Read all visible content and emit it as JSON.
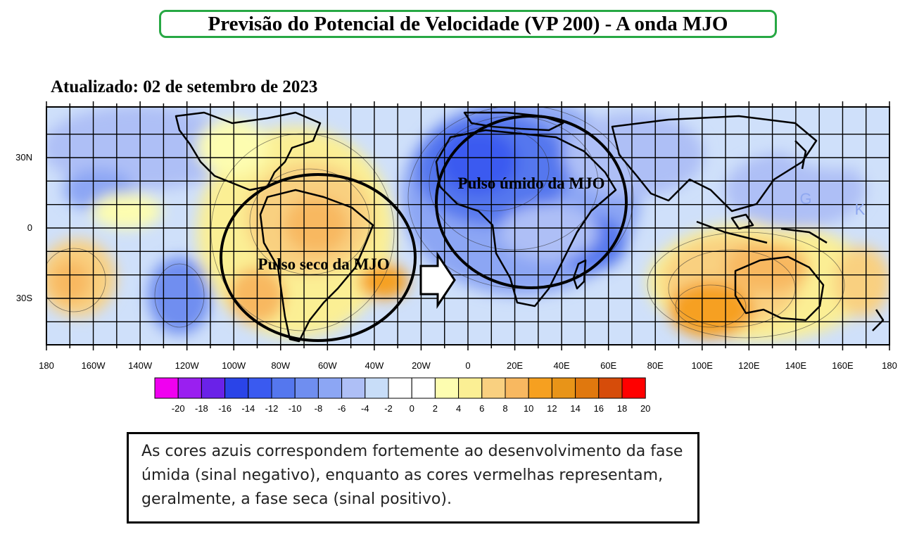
{
  "title": "Previsão do Potencial de Velocidade (VP 200) - A onda MJO",
  "updated": "Atualizado: 02 de setembro de 2023",
  "map": {
    "lat_labels": [
      "30N",
      "0",
      "30S"
    ],
    "lon_labels": [
      "180",
      "160W",
      "140W",
      "120W",
      "100W",
      "80W",
      "60W",
      "40W",
      "20W",
      "0",
      "20E",
      "40E",
      "60E",
      "80E",
      "100E",
      "120E",
      "140E",
      "160E",
      "180"
    ],
    "annotations": {
      "wet_pulse": "Pulso úmido da MJO",
      "dry_pulse": "Pulso seco da MJO",
      "marker_g": "G",
      "marker_k": "K"
    }
  },
  "colorbar": {
    "labels": [
      "-20",
      "-18",
      "-16",
      "-14",
      "-12",
      "-10",
      "-8",
      "-6",
      "-4",
      "-2",
      "0",
      "2",
      "4",
      "6",
      "8",
      "10",
      "12",
      "14",
      "16",
      "18",
      "20"
    ],
    "colors": [
      "#f000f0",
      "#9a1ff0",
      "#6a22e8",
      "#2a44e8",
      "#3a5af0",
      "#5577ee",
      "#6f8ef0",
      "#8ca6f4",
      "#aebff6",
      "#c8ddf8",
      "#ffffff",
      "#ffffff",
      "#fdfdb0",
      "#fbef94",
      "#f9d080",
      "#f8b860",
      "#f6a020",
      "#e89418",
      "#e0780e",
      "#d64c0a",
      "#ff0000"
    ]
  },
  "caption": "As cores azuis correspondem fortemente ao desenvolvimento da fase úmida (sinal negativo), enquanto as cores vermelhas representam, geralmente, a fase seca (sinal positivo).",
  "colors": {
    "title_border": "#27a844",
    "wet_blue": "#5b7ce8",
    "dry_orange": "#f4b04a"
  }
}
